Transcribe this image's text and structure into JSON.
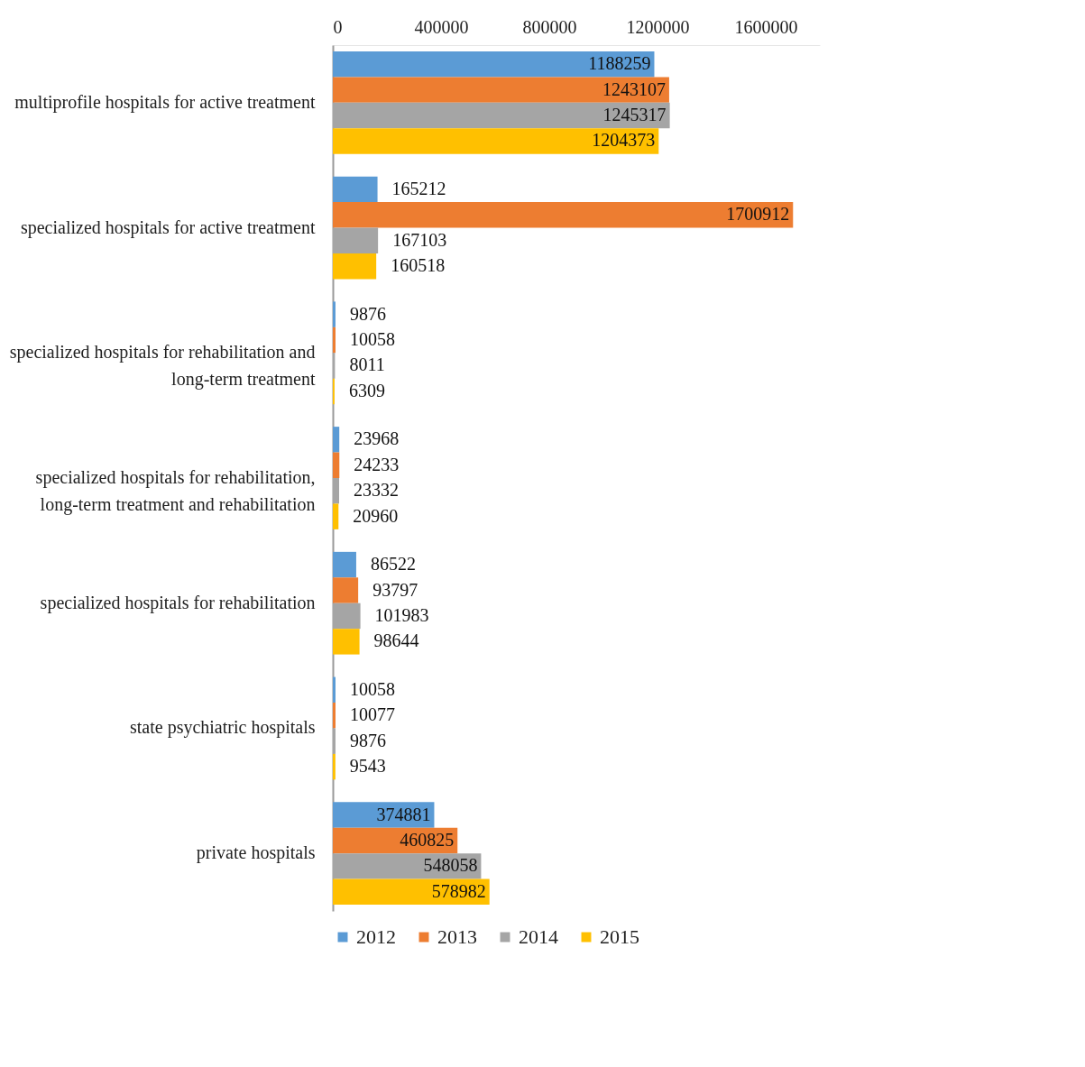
{
  "chart_data": {
    "type": "bar",
    "orientation": "horizontal",
    "categories": [
      "multiprofile hospitals for active treatment",
      "specialized hospitals for active treatment",
      "specialized hospitals for rehabilitation and long-term treatment",
      "specialized hospitals for rehabilitation, long-term treatment and rehabilitation",
      "specialized hospitals for rehabilitation",
      "state psychiatric hospitals",
      "private hospitals"
    ],
    "series": [
      {
        "name": "2012",
        "color": "#5b9bd5",
        "values": [
          1188259,
          165212,
          9876,
          23968,
          86522,
          10058,
          374881
        ]
      },
      {
        "name": "2013",
        "color": "#ed7d31",
        "values": [
          1243107,
          1700912,
          10058,
          24233,
          93797,
          10077,
          460825
        ]
      },
      {
        "name": "2014",
        "color": "#a5a5a5",
        "values": [
          1245317,
          167103,
          8011,
          23332,
          101983,
          9876,
          548058
        ]
      },
      {
        "name": "2015",
        "color": "#ffc000",
        "values": [
          1204373,
          160518,
          6309,
          20960,
          98644,
          9543,
          578982
        ]
      }
    ],
    "xlim": [
      0,
      1800000
    ],
    "xticks": [
      0,
      400000,
      800000,
      1200000,
      1600000
    ],
    "data_labels": true,
    "legend": "bottom",
    "grid": false
  }
}
